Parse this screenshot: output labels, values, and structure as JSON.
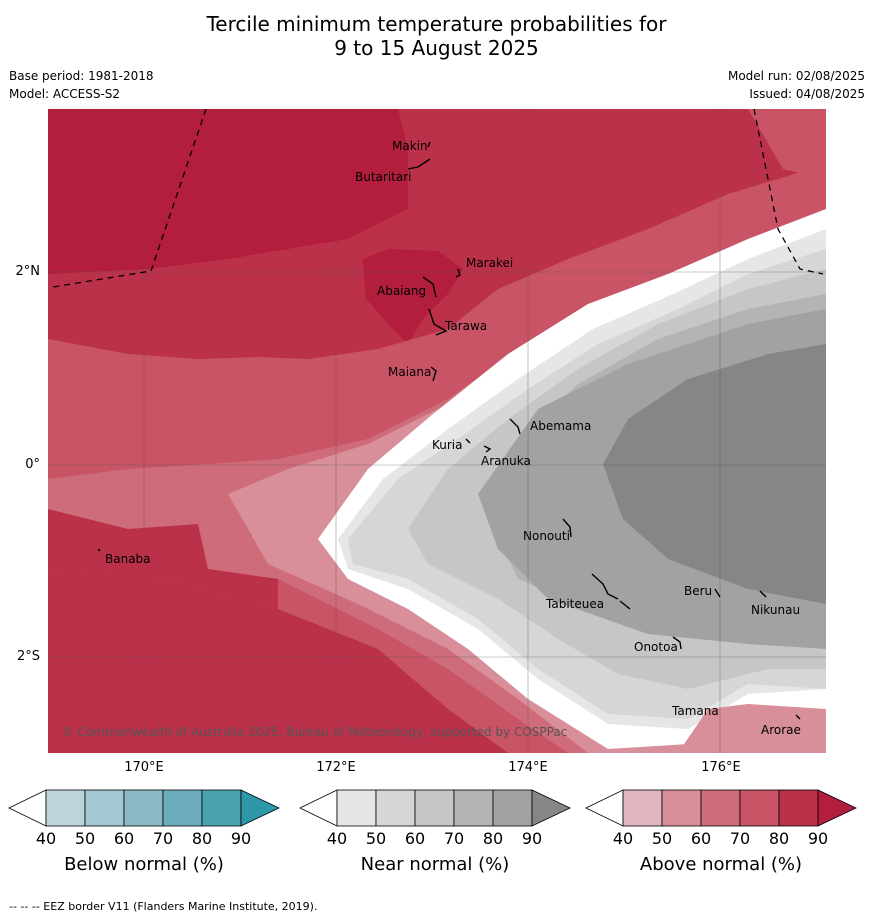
{
  "title_line1": "Tercile minimum temperature probabilities for",
  "title_line2": "9 to 15 August 2025",
  "base_period": "Base period: 1981-2018",
  "model": "Model: ACCESS-S2",
  "model_run": "Model run: 02/08/2025",
  "issued": "Issued: 04/08/2025",
  "lat_labels": [
    "2°N",
    "0°",
    "2°S"
  ],
  "lon_labels": [
    "170°E",
    "172°E",
    "174°E",
    "176°E"
  ],
  "places": [
    "Makin",
    "Butaritari",
    "Marakei",
    "Abaiang",
    "Tarawa",
    "Maiana",
    "Abemama",
    "Kuria",
    "Aranuka",
    "Banaba",
    "Nonouti",
    "Beru",
    "Nikunau",
    "Tabiteuea",
    "Onotoa",
    "Tamana",
    "Arorae"
  ],
  "copyright": "© Commonwealth of Australia 2025, Bureau of Meteorology, supported by COSPPac",
  "colorbars": [
    {
      "title": "Below normal (%)",
      "ticks": [
        "40",
        "50",
        "60",
        "70",
        "80",
        "90"
      ],
      "colors": [
        "#ffffff",
        "#bcd4dc",
        "#a5c9d2",
        "#8bbac6",
        "#6eaebc",
        "#4aa3b1",
        "#2e97a8"
      ]
    },
    {
      "title": "Near normal (%)",
      "ticks": [
        "40",
        "50",
        "60",
        "70",
        "80",
        "90"
      ],
      "colors": [
        "#ffffff",
        "#e6e6e6",
        "#d6d6d6",
        "#c6c6c6",
        "#b4b4b4",
        "#a2a2a2",
        "#868686"
      ]
    },
    {
      "title": "Above normal (%)",
      "ticks": [
        "40",
        "50",
        "60",
        "70",
        "80",
        "90"
      ],
      "colors": [
        "#ffffff",
        "#e1b5bd",
        "#d88f99",
        "#cf6c79",
        "#c85465",
        "#bb3149",
        "#b21e3c"
      ]
    }
  ],
  "footer": "--  --  -- EEZ border V11 (Flanders Marine Institute, 2019)."
}
